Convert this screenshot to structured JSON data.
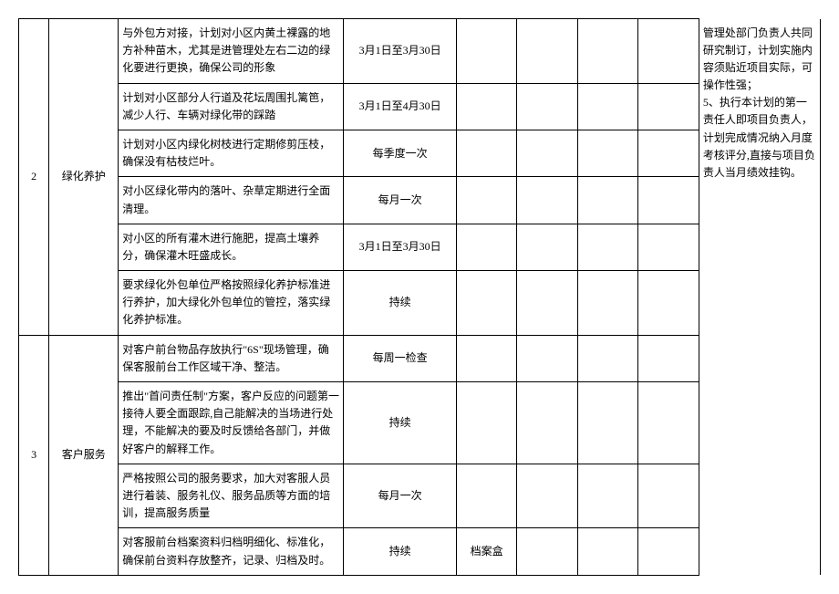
{
  "sections": [
    {
      "num": "2",
      "category": "绿化养护",
      "rows": [
        {
          "desc": "与外包方对接，计划对小区内黄土裸露的地方补种苗木，尤其是进管理处左右二边的绿化要进行更换，确保公司的形象",
          "time": "3月1日至3月30日",
          "e": "",
          "f": "",
          "g": "",
          "h": ""
        },
        {
          "desc": "计划对小区部分人行道及花坛周围扎篱笆，减少人行、车辆对绿化带的踩踏",
          "time": "3月1日至4月30日",
          "e": "",
          "f": "",
          "g": "",
          "h": ""
        },
        {
          "desc": "计划对小区内绿化树枝进行定期修剪压枝，确保没有枯枝烂叶。",
          "time": "每季度一次",
          "e": "",
          "f": "",
          "g": "",
          "h": ""
        },
        {
          "desc": "对小区绿化带内的落叶、杂草定期进行全面清理。",
          "time": "每月一次",
          "e": "",
          "f": "",
          "g": "",
          "h": ""
        },
        {
          "desc": "对小区的所有灌木进行施肥，提高土壤养分，确保灌木旺盛成长。",
          "time": "3月1日至3月30日",
          "e": "",
          "f": "",
          "g": "",
          "h": ""
        },
        {
          "desc": "要求绿化外包单位严格按照绿化养护标准进行养护，加大绿化外包单位的管控，落实绿化养护标准。",
          "time": "持续",
          "e": "",
          "f": "",
          "g": "",
          "h": ""
        }
      ]
    },
    {
      "num": "3",
      "category": "客户服务",
      "rows": [
        {
          "desc": "对客户前台物品存放执行\"6S\"现场管理，确保客服前台工作区域干净、整洁。",
          "time": "每周一检查",
          "e": "",
          "f": "",
          "g": "",
          "h": ""
        },
        {
          "desc": "推出\"首问责任制\"方案，客户反应的问题第一接待人要全面跟踪,自己能解决的当场进行处理，不能解决的要及时反馈给各部门，并做好客户的解释工作。",
          "time": "持续",
          "e": "",
          "f": "",
          "g": "",
          "h": ""
        },
        {
          "desc": "严格按照公司的服务要求，加大对客服人员进行着装、服务礼仪、服务品质等方面的培训，提高服务质量",
          "time": "每月一次",
          "e": "",
          "f": "",
          "g": "",
          "h": ""
        },
        {
          "desc": "对客服前台档案资料归档明细化、标准化，确保前台资料存放整齐，记录、归档及时。",
          "time": "持续",
          "e": "档案盒",
          "f": "",
          "g": "",
          "h": ""
        }
      ]
    }
  ],
  "notes": "管理处部门负责人共同研究制订，计划实施内容须贴近项目实际，可操作性强；\n5、执行本计划的第一责任人即项目负责人，计划完成情况纳入月度考核评分,直接与项目负责人当月绩效挂钩。"
}
